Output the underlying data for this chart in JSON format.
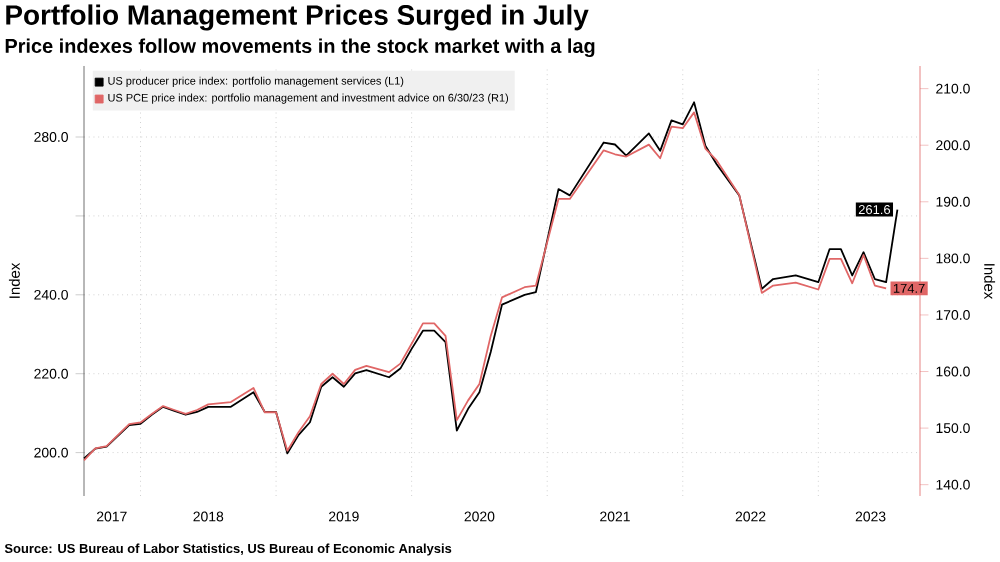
{
  "chart_data": {
    "type": "line",
    "title": "Portfolio Management Prices Surged in July",
    "subtitle": "Price indexes follow movements in the stock market with a lag",
    "ylabel": "Index",
    "y2label": "Index",
    "x": [
      "2017-08",
      "2017-09",
      "2017-10",
      "2017-12",
      "2018-01",
      "2018-02",
      "2018-03",
      "2018-04",
      "2018-05",
      "2018-06",
      "2018-07",
      "2018-09",
      "2018-11",
      "2018-12",
      "2019-01",
      "2019-02",
      "2019-03",
      "2019-04",
      "2019-05",
      "2019-06",
      "2019-07",
      "2019-08",
      "2019-09",
      "2019-11",
      "2019-12",
      "2020-01",
      "2020-02",
      "2020-03",
      "2020-04",
      "2020-05",
      "2020-06",
      "2020-07",
      "2020-08",
      "2020-09",
      "2020-11",
      "2020-12",
      "2021-02",
      "2021-03",
      "2021-06",
      "2021-07",
      "2021-08",
      "2021-10",
      "2021-11",
      "2021-12",
      "2022-01",
      "2022-02",
      "2022-03",
      "2022-04",
      "2022-06",
      "2022-08",
      "2022-09",
      "2022-11",
      "2023-01",
      "2023-02",
      "2023-03",
      "2023-04",
      "2023-05",
      "2023-06",
      "2023-07",
      "2023-08"
    ],
    "series": [
      {
        "name": "US producer price index: portfolio management services (L1)",
        "color": "#000000",
        "values": [
          198.5,
          201,
          201.5,
          207,
          207.3,
          209.6,
          211.6,
          210.6,
          209.6,
          210.3,
          211.6,
          211.6,
          215.3,
          210.3,
          210.3,
          199.8,
          204.5,
          207.7,
          216.7,
          219.1,
          216.7,
          220.1,
          220.9,
          219.1,
          221.3,
          226.3,
          230.9,
          230.9,
          228,
          205.6,
          211.1,
          215.3,
          225.5,
          237.5,
          240,
          240.7,
          266.8,
          265.2,
          278.6,
          278.1,
          275.3,
          280.9,
          276.5,
          284.2,
          283.2,
          288.8,
          277.8,
          273.1,
          265.2,
          241.5,
          244,
          244.9,
          243.2,
          251.6,
          251.6,
          244.9,
          250.8,
          244,
          243.2,
          261.6
        ],
        "value_labels": [
          null,
          null,
          null,
          null,
          null,
          null,
          null,
          null,
          null,
          null,
          null,
          null,
          null,
          null,
          null,
          null,
          null,
          null,
          null,
          null,
          null,
          null,
          null,
          null,
          null,
          null,
          null,
          null,
          null,
          null,
          null,
          null,
          null,
          null,
          null,
          null,
          null,
          null,
          null,
          null,
          null,
          null,
          null,
          null,
          null,
          null,
          null,
          null,
          null,
          null,
          null,
          null,
          null,
          null,
          null,
          null,
          null,
          null,
          null,
          "261.6"
        ]
      },
      {
        "name": "US PCE price index: portfolio management and investment advice on 6/30/23 (R1)",
        "color": "#e06666",
        "axis": "y2",
        "values": [
          144.3,
          146.4,
          146.8,
          150.7,
          151,
          152.5,
          153.9,
          153.2,
          152.5,
          153.2,
          154.2,
          154.6,
          157.1,
          152.8,
          152.8,
          146,
          149.3,
          152.1,
          157.8,
          159.6,
          157.8,
          160.3,
          161,
          159.9,
          161.4,
          164.9,
          168.5,
          168.5,
          166.3,
          151.4,
          154.9,
          157.8,
          166.3,
          173.1,
          174.9,
          175.2,
          190.5,
          190.5,
          199.1,
          198.4,
          198,
          200.1,
          197.7,
          203.3,
          203,
          205.8,
          199.4,
          197.3,
          191.2,
          173.9,
          175.2,
          175.7,
          174.5,
          179.9,
          179.9,
          175.6,
          180.6,
          175.2,
          174.7,
          null
        ],
        "value_labels": [
          null,
          null,
          null,
          null,
          null,
          null,
          null,
          null,
          null,
          null,
          null,
          null,
          null,
          null,
          null,
          null,
          null,
          null,
          null,
          null,
          null,
          null,
          null,
          null,
          null,
          null,
          null,
          null,
          null,
          null,
          null,
          null,
          null,
          null,
          null,
          null,
          null,
          null,
          null,
          null,
          null,
          null,
          null,
          null,
          null,
          null,
          null,
          null,
          null,
          null,
          null,
          null,
          null,
          null,
          null,
          null,
          null,
          null,
          "174.7",
          null
        ]
      }
    ],
    "xlim": [
      "2017-08",
      "2023-10"
    ],
    "xticks": [
      {
        "value": "2017-10-15",
        "label": "2017"
      },
      {
        "value": "2018-07",
        "label": "2018"
      },
      {
        "value": "2019-07",
        "label": "2019"
      },
      {
        "value": "2020-07",
        "label": "2020"
      },
      {
        "value": "2021-07",
        "label": "2021"
      },
      {
        "value": "2022-07",
        "label": "2022"
      },
      {
        "value": "2023-05-20",
        "label": "2023"
      },
      {
        "value": "2018-01",
        "label": null
      },
      {
        "value": "2019-01",
        "label": null
      },
      {
        "value": "2020-01",
        "label": null
      },
      {
        "value": "2021-01",
        "label": null
      },
      {
        "value": "2022-01",
        "label": null
      },
      {
        "value": "2023-01",
        "label": null
      }
    ],
    "ylim": [
      189,
      298
    ],
    "yticks": [
      {
        "value": 200,
        "label": "200.0"
      },
      {
        "value": 220,
        "label": "220.0"
      },
      {
        "value": 240,
        "label": "240.0"
      },
      {
        "value": 260,
        "label": null
      },
      {
        "value": 280,
        "label": "280.0"
      }
    ],
    "y2lim": [
      138,
      214
    ],
    "y2ticks": [
      {
        "value": 140,
        "label": "140.0"
      },
      {
        "value": 150,
        "label": "150.0"
      },
      {
        "value": 160,
        "label": "160.0"
      },
      {
        "value": 170,
        "label": "170.0"
      },
      {
        "value": 180,
        "label": "180.0"
      },
      {
        "value": 190,
        "label": "190.0"
      },
      {
        "value": 200,
        "label": "200.0"
      },
      {
        "value": 210,
        "label": "210.0"
      }
    ],
    "grid": true,
    "legend": "top left",
    "annotations": [
      "Source: US Bureau of Labor Statistics, US Bureau of Economic Analysis"
    ]
  }
}
